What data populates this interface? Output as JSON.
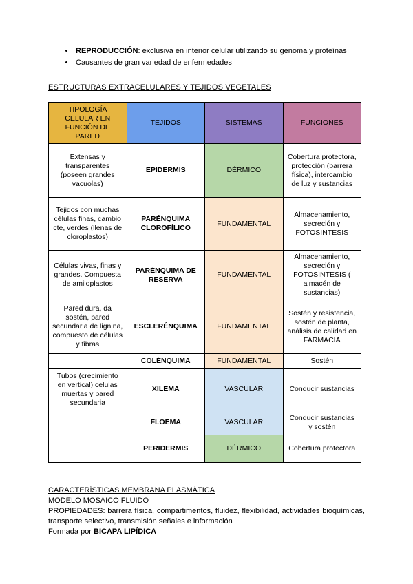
{
  "intro": {
    "bullets": [
      {
        "lead": "REPRODUCCIÓN",
        "rest": ": exclusiva en interior celular utilizando su genoma y proteínas"
      },
      {
        "lead": "",
        "rest": "Causantes de gran variedad de enfermedades"
      }
    ]
  },
  "section1": {
    "title": "ESTRUCTURAS EXTRACELULARES Y TEJIDOS VEGETALES"
  },
  "colors": {
    "yellow": "#E6B540",
    "blue": "#6D9EEB",
    "purple": "#8E7CC3",
    "pink": "#C27BA0",
    "green": "#B6D7A8",
    "peach": "#FCE5CD",
    "lightblue": "#CFE2F3",
    "white": "#FFFFFF"
  },
  "table": {
    "headers": [
      {
        "text": "TIPOLOGÍA CELULAR EN FUNCIÓN DE PARED",
        "bg": "yellow"
      },
      {
        "text": "TEJIDOS",
        "bg": "blue"
      },
      {
        "text": "SISTEMAS",
        "bg": "purple"
      },
      {
        "text": "FUNCIONES",
        "bg": "pink"
      }
    ],
    "rows": [
      {
        "tipologia": "Extensas y transparentes (poseen grandes vacuolas)",
        "tejido": "EPIDERMIS",
        "sistema": "DÉRMICO",
        "sistema_bg": "green",
        "funciones": "Cobertura protectora, protección (barrera física), intercambio de luz y sustancias"
      },
      {
        "tipologia": "Tejidos con muchas células finas, cambio cte, verdes (llenas de cloroplastos)",
        "tejido": "PARÉNQUIMA CLOROFÍLICO",
        "sistema": "FUNDAMENTAL",
        "sistema_bg": "peach",
        "funciones": "Almacenamiento, secreción y FOTOSÍNTESIS"
      },
      {
        "tipologia": "Células vivas, finas y grandes. Compuesta de amiloplastos",
        "tejido": "PARÉNQUIMA DE RESERVA",
        "sistema": "FUNDAMENTAL",
        "sistema_bg": "peach",
        "funciones": "Almacenamiento, secreción y FOTOSÍNTESIS ( almacén de sustancias)"
      },
      {
        "tipologia": "Pared dura, da sostén, pared secundaria de lignina, compuesto de células y fibras",
        "tejido": "ESCLERÉNQUIMA",
        "sistema": "FUNDAMENTAL",
        "sistema_bg": "peach",
        "funciones": "Sostén y resistencia, sostén de planta, análisis de calidad en FARMACIA"
      },
      {
        "tipologia": "",
        "tejido": "COLÉNQUIMA",
        "sistema": "FUNDAMENTAL",
        "sistema_bg": "peach",
        "funciones": "Sostén"
      },
      {
        "tipologia": "Tubos (crecimiento en vertical) celulas muertas y pared secundaria",
        "tejido": "XILEMA",
        "sistema": "VASCULAR",
        "sistema_bg": "lightblue",
        "funciones": "Conducir sustancias"
      },
      {
        "tipologia": "",
        "tejido": "FLOEMA",
        "sistema": "VASCULAR",
        "sistema_bg": "lightblue",
        "funciones": "Conducir sustancias y sostén"
      },
      {
        "tipologia": "",
        "tejido": "PERIDERMIS",
        "sistema": "DÉRMICO",
        "sistema_bg": "green",
        "funciones": "Cobertura protectora"
      }
    ]
  },
  "section2": {
    "title": "CARACTERÍSTICAS MEMBRANA PLASMÁTICA",
    "line1": "MODELO MOSAICO FLUIDO",
    "propiedades_lead": "PROPIEDADES",
    "propiedades_rest": ": barrera física, compartimentos, fluidez, flexibilidad, actividades bioquímicas, transporte selectivo, transmisión señales e información",
    "formada_lead": "Formada por ",
    "formada_bold": "BICAPA LIPÍDICA"
  }
}
